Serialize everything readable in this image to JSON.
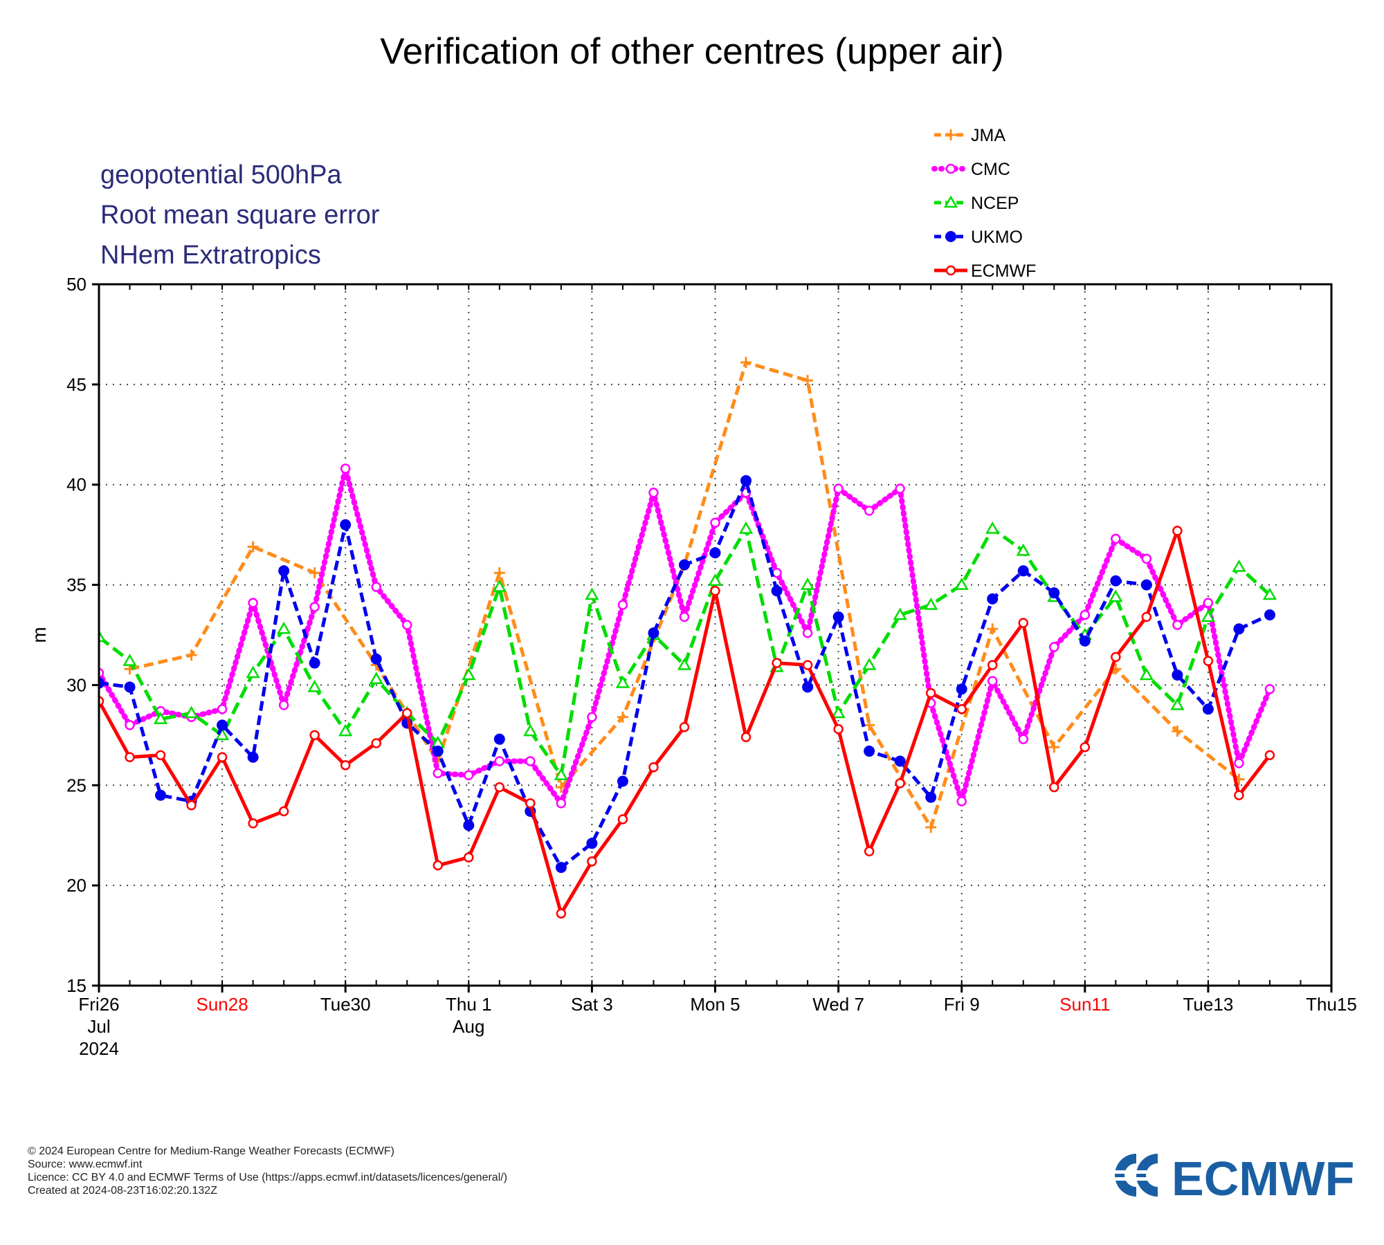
{
  "title": "Verification of other centres (upper air)",
  "info_lines": [
    "geopotential 500hPa",
    "Root mean square error",
    "NHem Extratropics"
  ],
  "footer": {
    "copyright": "© 2024 European Centre for Medium-Range Weather Forecasts (ECMWF)",
    "source": "Source: www.ecmwf.int",
    "licence": "Licence: CC BY 4.0 and ECMWF Terms of Use (https://apps.ecmwf.int/datasets/licences/general/)",
    "created": "Created at 2024-08-23T16:02:20.132Z"
  },
  "logo": {
    "text": "ECMWF",
    "color": "#1a5fa3"
  },
  "chart_data": {
    "type": "line",
    "title": "Verification of other centres (upper air)",
    "ylabel": "m",
    "ylim": [
      15,
      50
    ],
    "yticks": [
      15,
      20,
      25,
      30,
      35,
      40,
      45,
      50
    ],
    "xlim": [
      0,
      40
    ],
    "grid": true,
    "legend_position": "top-right",
    "xticks": [
      {
        "pos": 0,
        "lines": [
          "Fri26",
          "Jul",
          "2024"
        ],
        "color": "#000000"
      },
      {
        "pos": 4,
        "lines": [
          "Sun28"
        ],
        "color": "#ff0000"
      },
      {
        "pos": 8,
        "lines": [
          "Tue30"
        ],
        "color": "#000000"
      },
      {
        "pos": 12,
        "lines": [
          "Thu 1",
          "Aug"
        ],
        "color": "#000000"
      },
      {
        "pos": 16,
        "lines": [
          "Sat 3"
        ],
        "color": "#000000"
      },
      {
        "pos": 20,
        "lines": [
          "Mon 5"
        ],
        "color": "#000000"
      },
      {
        "pos": 24,
        "lines": [
          "Wed 7"
        ],
        "color": "#000000"
      },
      {
        "pos": 28,
        "lines": [
          "Fri 9"
        ],
        "color": "#000000"
      },
      {
        "pos": 32,
        "lines": [
          "Sun11"
        ],
        "color": "#ff0000"
      },
      {
        "pos": 36,
        "lines": [
          "Tue13"
        ],
        "color": "#000000"
      },
      {
        "pos": 40,
        "lines": [
          "Thu15"
        ],
        "color": "#000000"
      }
    ],
    "series": [
      {
        "name": "JMA",
        "color": "#ff8c1a",
        "dash": "14,7",
        "marker": "plus",
        "x": [
          1,
          3,
          5,
          7,
          9,
          11,
          13,
          15,
          17,
          19,
          21,
          23,
          25,
          27,
          29,
          31,
          33,
          35,
          37
        ],
        "y": [
          30.8,
          31.5,
          36.9,
          35.6,
          31.0,
          26.2,
          35.6,
          24.9,
          28.4,
          36.0,
          46.1,
          45.2,
          28.0,
          22.9,
          32.8,
          26.9,
          30.8,
          27.7,
          25.3
        ]
      },
      {
        "name": "CMC",
        "color": "#ff00ff",
        "dash": "2,7",
        "marker": "circle-open",
        "x": [
          0,
          1,
          2,
          3,
          4,
          5,
          6,
          7,
          8,
          9,
          10,
          11,
          12,
          13,
          14,
          15,
          16,
          17,
          18,
          19,
          20,
          21,
          22,
          23,
          24,
          25,
          26,
          27,
          28,
          29,
          30,
          31,
          32,
          33,
          34,
          35,
          36,
          37,
          38
        ],
        "y": [
          30.6,
          28.0,
          28.7,
          28.4,
          28.8,
          34.1,
          29.0,
          33.9,
          40.8,
          34.9,
          33.0,
          25.6,
          25.5,
          26.2,
          26.2,
          24.1,
          28.4,
          34.0,
          39.6,
          33.4,
          38.1,
          39.6,
          35.6,
          32.6,
          39.8,
          38.7,
          39.8,
          29.1,
          24.2,
          30.2,
          27.3,
          31.9,
          33.5,
          37.3,
          36.3,
          33.0,
          34.1,
          26.1,
          29.8
        ]
      },
      {
        "name": "NCEP",
        "color": "#00dd00",
        "dash": "18,8",
        "marker": "triangle-open",
        "x": [
          0,
          1,
          2,
          3,
          4,
          5,
          6,
          7,
          8,
          9,
          10,
          11,
          12,
          13,
          14,
          15,
          16,
          17,
          18,
          19,
          20,
          21,
          22,
          23,
          24,
          25,
          26,
          27,
          28,
          29,
          30,
          31,
          32,
          33,
          34,
          35,
          36,
          37,
          38
        ],
        "y": [
          32.4,
          31.2,
          28.3,
          28.6,
          27.5,
          30.6,
          32.8,
          29.9,
          27.7,
          30.3,
          28.6,
          27.1,
          30.5,
          34.9,
          27.7,
          25.5,
          34.5,
          30.1,
          32.5,
          31.0,
          35.2,
          37.8,
          30.9,
          35.0,
          28.6,
          31.0,
          33.5,
          34.0,
          35.0,
          37.8,
          36.7,
          34.4,
          32.5,
          34.4,
          30.5,
          29.0,
          33.4,
          35.9,
          34.5
        ]
      },
      {
        "name": "UKMO",
        "color": "#0000ee",
        "dash": "14,7",
        "marker": "circle-filled",
        "x": [
          0,
          1,
          2,
          3,
          4,
          5,
          6,
          7,
          8,
          9,
          10,
          11,
          12,
          13,
          14,
          15,
          16,
          17,
          18,
          19,
          20,
          21,
          22,
          23,
          24,
          25,
          26,
          27,
          28,
          29,
          30,
          31,
          32,
          33,
          34,
          35,
          36,
          37,
          38
        ],
        "y": [
          30.1,
          29.9,
          24.5,
          24.2,
          28.0,
          26.4,
          35.7,
          31.1,
          38.0,
          31.3,
          28.1,
          26.7,
          23.0,
          27.3,
          23.7,
          20.9,
          22.1,
          25.2,
          32.6,
          36.0,
          36.6,
          40.2,
          34.7,
          29.9,
          33.4,
          26.7,
          26.2,
          24.4,
          29.8,
          34.3,
          35.7,
          34.6,
          32.2,
          35.2,
          35.0,
          30.5,
          28.8,
          32.8,
          33.5
        ]
      },
      {
        "name": "ECMWF",
        "color": "#ff0000",
        "dash": "",
        "marker": "circle-open",
        "x": [
          0,
          1,
          2,
          3,
          4,
          5,
          6,
          7,
          8,
          9,
          10,
          11,
          12,
          13,
          14,
          15,
          16,
          17,
          18,
          19,
          20,
          21,
          22,
          23,
          24,
          25,
          26,
          27,
          28,
          29,
          30,
          31,
          32,
          33,
          34,
          35,
          36,
          37,
          38
        ],
        "y": [
          29.2,
          26.4,
          26.5,
          24.0,
          26.4,
          23.1,
          23.7,
          27.5,
          26.0,
          27.1,
          28.6,
          21.0,
          21.4,
          24.9,
          24.1,
          18.6,
          21.2,
          23.3,
          25.9,
          27.9,
          34.7,
          27.4,
          31.1,
          31.0,
          27.8,
          21.7,
          25.1,
          29.6,
          28.8,
          31.0,
          33.1,
          24.9,
          26.9,
          31.4,
          33.4,
          37.7,
          31.2,
          24.5,
          26.5
        ]
      }
    ]
  }
}
